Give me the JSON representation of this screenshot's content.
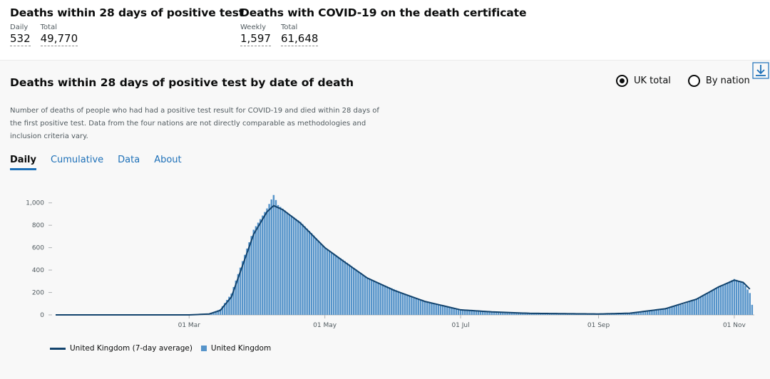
{
  "headline": {
    "left": {
      "title": "Deaths within 28 days of positive test",
      "metrics": [
        {
          "label": "Daily",
          "value": "532"
        },
        {
          "label": "Total",
          "value": "49,770"
        }
      ]
    },
    "right": {
      "title": "Deaths with COVID-19 on the death certificate",
      "metrics": [
        {
          "label": "Weekly",
          "value": "1,597"
        },
        {
          "label": "Total",
          "value": "61,648"
        }
      ]
    }
  },
  "card": {
    "title": "Deaths within 28 days of positive test by date of death",
    "radios": [
      {
        "label": "UK total",
        "selected": true
      },
      {
        "label": "By nation",
        "selected": false
      }
    ],
    "download_icon": "download-icon",
    "description": "Number of deaths of people who had had a positive test result for COVID-19 and died within 28 days of the first positive test. Data from the four nations are not directly comparable as methodologies and inclusion criteria vary.",
    "tabs": [
      {
        "label": "Daily",
        "active": true
      },
      {
        "label": "Cumulative",
        "active": false
      },
      {
        "label": "Data",
        "active": false
      },
      {
        "label": "About",
        "active": false
      }
    ]
  },
  "legend": {
    "line_label": "United Kingdom (7-day average)",
    "bar_label": "United Kingdom"
  },
  "colors": {
    "bar": "#5694ca",
    "line": "#12436d",
    "link": "#1d70b8",
    "card_bg": "#f8f8f8"
  },
  "chart_data": {
    "type": "bar",
    "ylim": [
      0,
      1100
    ],
    "yticks": [
      0,
      200,
      400,
      600,
      800,
      1000
    ],
    "ytick_labels": [
      "0",
      "200",
      "400",
      "600",
      "800",
      "1,000"
    ],
    "x_start": "2020-01-01",
    "x_end": "2020-11-10",
    "xticks": [
      "2020-03-01",
      "2020-05-01",
      "2020-07-01",
      "2020-09-01",
      "2020-11-01"
    ],
    "xtick_labels": [
      "01 Mar",
      "01 May",
      "01 Jul",
      "01 Sep",
      "01 Nov"
    ],
    "series": [
      {
        "name": "United Kingdom",
        "kind": "bar",
        "points": [
          [
            "2020-03-05",
            2
          ],
          [
            "2020-03-10",
            10
          ],
          [
            "2020-03-15",
            50
          ],
          [
            "2020-03-20",
            190
          ],
          [
            "2020-03-25",
            480
          ],
          [
            "2020-03-30",
            760
          ],
          [
            "2020-04-05",
            950
          ],
          [
            "2020-04-08",
            1070
          ],
          [
            "2020-04-10",
            980
          ],
          [
            "2020-04-15",
            900
          ],
          [
            "2020-04-20",
            830
          ],
          [
            "2020-04-25",
            730
          ],
          [
            "2020-05-01",
            600
          ],
          [
            "2020-05-10",
            480
          ],
          [
            "2020-05-20",
            330
          ],
          [
            "2020-06-01",
            230
          ],
          [
            "2020-06-10",
            150
          ],
          [
            "2020-06-20",
            95
          ],
          [
            "2020-07-01",
            45
          ],
          [
            "2020-07-15",
            27
          ],
          [
            "2020-08-01",
            14
          ],
          [
            "2020-08-15",
            10
          ],
          [
            "2020-09-01",
            8
          ],
          [
            "2020-09-15",
            15
          ],
          [
            "2020-09-25",
            35
          ],
          [
            "2020-10-01",
            55
          ],
          [
            "2020-10-10",
            100
          ],
          [
            "2020-10-20",
            190
          ],
          [
            "2020-10-27",
            270
          ],
          [
            "2020-11-01",
            320
          ],
          [
            "2020-11-05",
            290
          ],
          [
            "2020-11-08",
            195
          ],
          [
            "2020-11-09",
            90
          ]
        ]
      },
      {
        "name": "United Kingdom (7-day average)",
        "kind": "line",
        "points": [
          [
            "2020-01-01",
            0
          ],
          [
            "2020-03-01",
            0
          ],
          [
            "2020-03-10",
            8
          ],
          [
            "2020-03-15",
            40
          ],
          [
            "2020-03-20",
            160
          ],
          [
            "2020-03-25",
            440
          ],
          [
            "2020-03-30",
            720
          ],
          [
            "2020-04-05",
            920
          ],
          [
            "2020-04-08",
            975
          ],
          [
            "2020-04-12",
            940
          ],
          [
            "2020-04-20",
            820
          ],
          [
            "2020-05-01",
            600
          ],
          [
            "2020-05-10",
            470
          ],
          [
            "2020-05-20",
            330
          ],
          [
            "2020-06-01",
            220
          ],
          [
            "2020-06-15",
            120
          ],
          [
            "2020-07-01",
            45
          ],
          [
            "2020-07-15",
            27
          ],
          [
            "2020-08-01",
            14
          ],
          [
            "2020-09-01",
            8
          ],
          [
            "2020-09-15",
            15
          ],
          [
            "2020-10-01",
            55
          ],
          [
            "2020-10-15",
            140
          ],
          [
            "2020-10-25",
            250
          ],
          [
            "2020-11-01",
            310
          ],
          [
            "2020-11-05",
            290
          ],
          [
            "2020-11-08",
            230
          ]
        ]
      }
    ]
  }
}
